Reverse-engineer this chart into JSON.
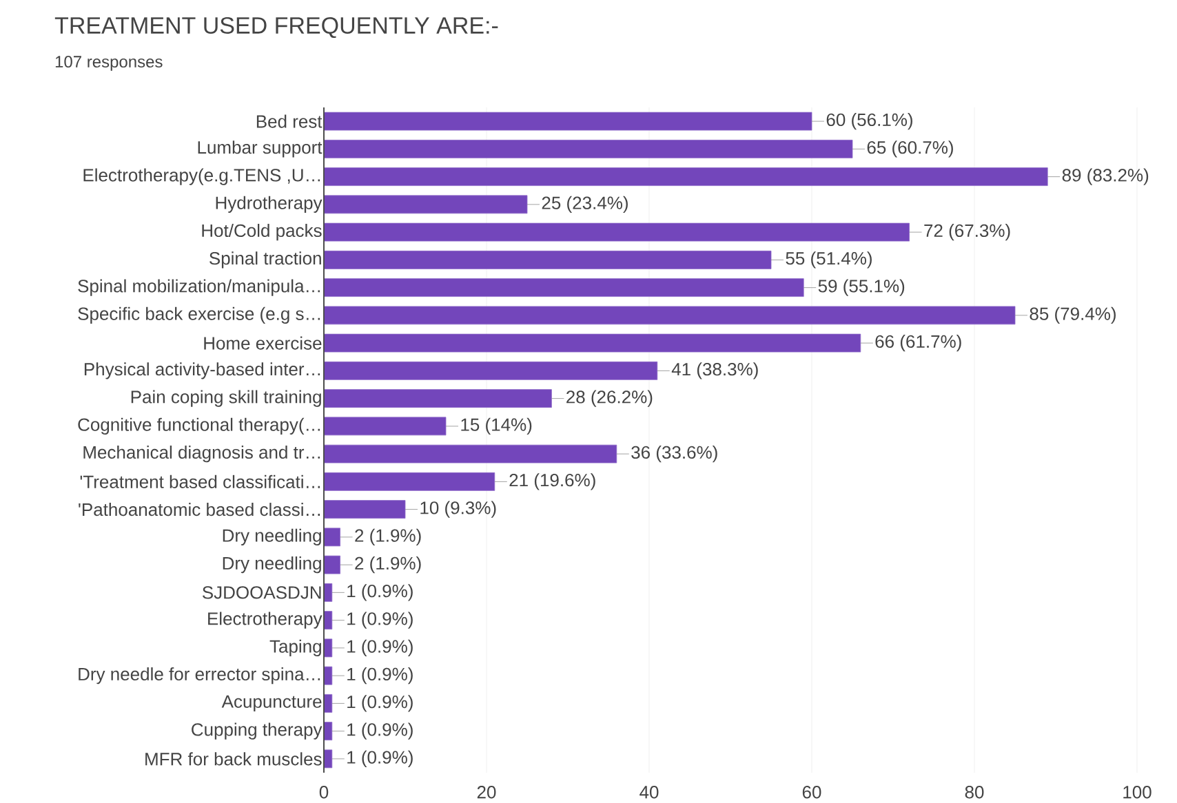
{
  "chart_data": {
    "type": "bar",
    "orientation": "horizontal",
    "title": "TREATMENT USED FREQUENTLY ARE:-",
    "subtitle": "107 responses",
    "categories": [
      "Bed rest",
      "Lumbar support",
      "Electrotherapy(e.g.TENS ,U…",
      "Hydrotherapy",
      "Hot/Cold packs",
      "Spinal traction",
      "Spinal mobilization/manipula…",
      "Specific back exercise (e.g s…",
      "Home exercise",
      "Physical activity-based inter…",
      "Pain coping skill training",
      "Cognitive functional therapy(…",
      "Mechanical diagnosis and tr…",
      "'Treatment based classificati…",
      "'Pathoanatomic based classi…",
      "Dry needling",
      "Dry needling",
      "SJDOOASDJN",
      "Electrotherapy",
      "Taping",
      "Dry needle for errector spina…",
      "Acupuncture",
      "Cupping therapy",
      "MFR for back muscles"
    ],
    "values": [
      60,
      65,
      89,
      25,
      72,
      55,
      59,
      85,
      66,
      41,
      28,
      15,
      36,
      21,
      10,
      2,
      2,
      1,
      1,
      1,
      1,
      1,
      1,
      1
    ],
    "value_labels": [
      "60 (56.1%)",
      "65 (60.7%)",
      "89 (83.2%)",
      "25 (23.4%)",
      "72 (67.3%)",
      "55 (51.4%)",
      "59 (55.1%)",
      "85 (79.4%)",
      "66 (61.7%)",
      "41 (38.3%)",
      "28 (26.2%)",
      "15 (14%)",
      "36 (33.6%)",
      "21 (19.6%)",
      "10 (9.3%)",
      "2 (1.9%)",
      "2 (1.9%)",
      "1 (0.9%)",
      "1 (0.9%)",
      "1 (0.9%)",
      "1 (0.9%)",
      "1 (0.9%)",
      "1 (0.9%)",
      "1 (0.9%)"
    ],
    "color": "#7346bb",
    "xlim": [
      0,
      100
    ],
    "xticks": [
      0,
      20,
      40,
      60,
      80,
      100
    ],
    "grid": "x"
  }
}
